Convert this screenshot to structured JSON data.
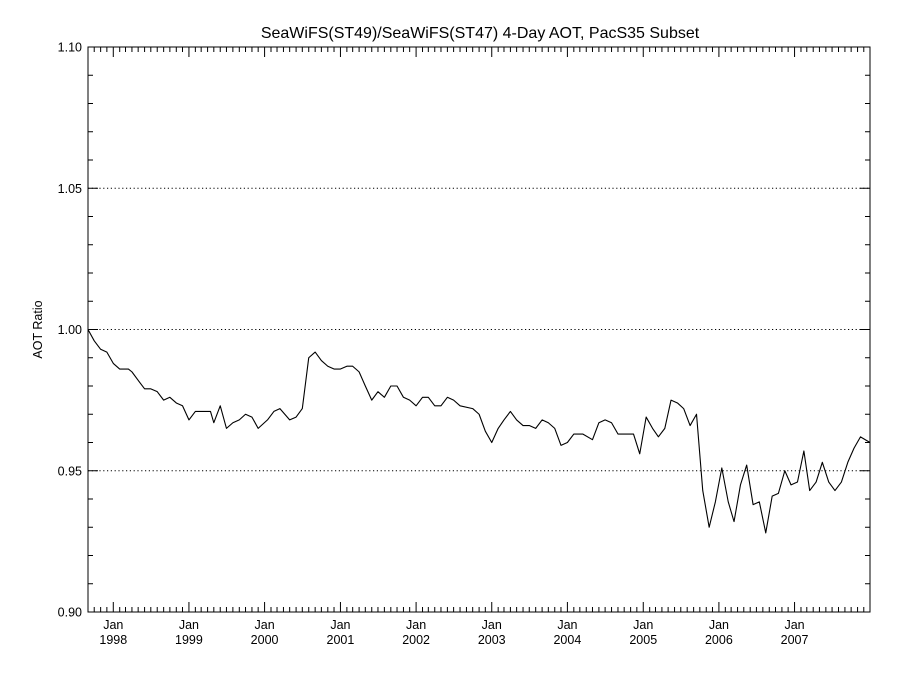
{
  "chart_data": {
    "type": "line",
    "title": "SeaWiFS(ST49)/SeaWiFS(ST47) 4-Day AOT, PacS35 Subset",
    "xlabel": "",
    "ylabel": "AOT Ratio",
    "ylim": [
      0.9,
      1.1
    ],
    "xlim": [
      "1997-09-01",
      "2007-12-31"
    ],
    "grid": "dotted horizontal at major y ticks",
    "y_ticks": [
      "0.90",
      "0.95",
      "1.00",
      "1.05",
      "1.10"
    ],
    "x_ticks": [
      {
        "month": "Jan",
        "year": "1998",
        "date": "1998-01-01"
      },
      {
        "month": "Jan",
        "year": "1999",
        "date": "1999-01-01"
      },
      {
        "month": "Jan",
        "year": "2000",
        "date": "2000-01-01"
      },
      {
        "month": "Jan",
        "year": "2001",
        "date": "2001-01-01"
      },
      {
        "month": "Jan",
        "year": "2002",
        "date": "2002-01-01"
      },
      {
        "month": "Jan",
        "year": "2003",
        "date": "2003-01-01"
      },
      {
        "month": "Jan",
        "year": "2004",
        "date": "2004-01-01"
      },
      {
        "month": "Jan",
        "year": "2005",
        "date": "2005-01-01"
      },
      {
        "month": "Jan",
        "year": "2006",
        "date": "2006-01-01"
      },
      {
        "month": "Jan",
        "year": "2007",
        "date": "2007-01-01"
      }
    ],
    "series": [
      {
        "color": "#000000",
        "points": [
          [
            "1997-09-01",
            1.0
          ],
          [
            "1997-10-01",
            0.996
          ],
          [
            "1997-11-01",
            0.993
          ],
          [
            "1997-12-01",
            0.992
          ],
          [
            "1998-01-01",
            0.988
          ],
          [
            "1998-02-01",
            0.986
          ],
          [
            "1998-03-15",
            0.986
          ],
          [
            "1998-04-01",
            0.985
          ],
          [
            "1998-05-01",
            0.982
          ],
          [
            "1998-06-01",
            0.979
          ],
          [
            "1998-07-01",
            0.979
          ],
          [
            "1998-08-01",
            0.978
          ],
          [
            "1998-09-01",
            0.975
          ],
          [
            "1998-10-01",
            0.976
          ],
          [
            "1998-11-01",
            0.974
          ],
          [
            "1998-12-01",
            0.973
          ],
          [
            "1999-01-01",
            0.968
          ],
          [
            "1999-02-01",
            0.971
          ],
          [
            "1999-03-01",
            0.971
          ],
          [
            "1999-04-15",
            0.971
          ],
          [
            "1999-05-01",
            0.967
          ],
          [
            "1999-06-01",
            0.973
          ],
          [
            "1999-07-01",
            0.965
          ],
          [
            "1999-08-01",
            0.967
          ],
          [
            "1999-09-01",
            0.968
          ],
          [
            "1999-10-01",
            0.97
          ],
          [
            "1999-11-01",
            0.969
          ],
          [
            "1999-12-01",
            0.965
          ],
          [
            "2000-01-15",
            0.968
          ],
          [
            "2000-02-15",
            0.971
          ],
          [
            "2000-03-15",
            0.972
          ],
          [
            "2000-05-01",
            0.968
          ],
          [
            "2000-06-01",
            0.969
          ],
          [
            "2000-07-01",
            0.972
          ],
          [
            "2000-08-01",
            0.99
          ],
          [
            "2000-09-01",
            0.992
          ],
          [
            "2000-10-01",
            0.989
          ],
          [
            "2000-11-01",
            0.987
          ],
          [
            "2000-12-01",
            0.986
          ],
          [
            "2001-01-01",
            0.986
          ],
          [
            "2001-02-01",
            0.987
          ],
          [
            "2001-03-01",
            0.987
          ],
          [
            "2001-04-01",
            0.985
          ],
          [
            "2001-05-01",
            0.98
          ],
          [
            "2001-06-01",
            0.975
          ],
          [
            "2001-07-01",
            0.978
          ],
          [
            "2001-08-01",
            0.976
          ],
          [
            "2001-09-01",
            0.98
          ],
          [
            "2001-10-01",
            0.98
          ],
          [
            "2001-11-01",
            0.976
          ],
          [
            "2001-12-01",
            0.975
          ],
          [
            "2002-01-01",
            0.973
          ],
          [
            "2002-02-01",
            0.976
          ],
          [
            "2002-03-01",
            0.976
          ],
          [
            "2002-04-01",
            0.973
          ],
          [
            "2002-05-01",
            0.973
          ],
          [
            "2002-06-01",
            0.976
          ],
          [
            "2002-07-01",
            0.975
          ],
          [
            "2002-08-01",
            0.973
          ],
          [
            "2002-10-01",
            0.972
          ],
          [
            "2002-11-01",
            0.97
          ],
          [
            "2002-12-01",
            0.964
          ],
          [
            "2003-01-01",
            0.96
          ],
          [
            "2003-02-01",
            0.965
          ],
          [
            "2003-03-01",
            0.968
          ],
          [
            "2003-04-01",
            0.971
          ],
          [
            "2003-05-01",
            0.968
          ],
          [
            "2003-06-01",
            0.966
          ],
          [
            "2003-07-01",
            0.966
          ],
          [
            "2003-08-01",
            0.965
          ],
          [
            "2003-09-01",
            0.968
          ],
          [
            "2003-10-01",
            0.967
          ],
          [
            "2003-11-01",
            0.965
          ],
          [
            "2003-12-01",
            0.959
          ],
          [
            "2004-01-01",
            0.96
          ],
          [
            "2004-02-01",
            0.963
          ],
          [
            "2004-03-15",
            0.963
          ],
          [
            "2004-05-01",
            0.961
          ],
          [
            "2004-06-01",
            0.967
          ],
          [
            "2004-07-01",
            0.968
          ],
          [
            "2004-08-01",
            0.967
          ],
          [
            "2004-09-01",
            0.963
          ],
          [
            "2004-10-01",
            0.963
          ],
          [
            "2004-11-15",
            0.963
          ],
          [
            "2004-12-15",
            0.956
          ],
          [
            "2005-01-15",
            0.969
          ],
          [
            "2005-02-15",
            0.965
          ],
          [
            "2005-03-15",
            0.962
          ],
          [
            "2005-04-15",
            0.965
          ],
          [
            "2005-05-15",
            0.975
          ],
          [
            "2005-06-15",
            0.974
          ],
          [
            "2005-07-15",
            0.972
          ],
          [
            "2005-08-15",
            0.966
          ],
          [
            "2005-09-15",
            0.97
          ],
          [
            "2005-10-15",
            0.943
          ],
          [
            "2005-11-15",
            0.93
          ],
          [
            "2005-12-15",
            0.939
          ],
          [
            "2006-01-15",
            0.951
          ],
          [
            "2006-02-15",
            0.939
          ],
          [
            "2006-03-15",
            0.932
          ],
          [
            "2006-04-15",
            0.945
          ],
          [
            "2006-05-15",
            0.952
          ],
          [
            "2006-06-15",
            0.938
          ],
          [
            "2006-07-15",
            0.939
          ],
          [
            "2006-08-15",
            0.928
          ],
          [
            "2006-09-15",
            0.941
          ],
          [
            "2006-10-15",
            0.942
          ],
          [
            "2006-11-15",
            0.95
          ],
          [
            "2006-12-15",
            0.945
          ],
          [
            "2007-01-15",
            0.946
          ],
          [
            "2007-02-15",
            0.957
          ],
          [
            "2007-03-15",
            0.943
          ],
          [
            "2007-04-15",
            0.946
          ],
          [
            "2007-05-15",
            0.953
          ],
          [
            "2007-06-15",
            0.946
          ],
          [
            "2007-07-15",
            0.943
          ],
          [
            "2007-08-15",
            0.946
          ],
          [
            "2007-09-15",
            0.953
          ],
          [
            "2007-10-15",
            0.958
          ],
          [
            "2007-11-15",
            0.962
          ],
          [
            "2007-12-31",
            0.96
          ]
        ]
      }
    ]
  }
}
